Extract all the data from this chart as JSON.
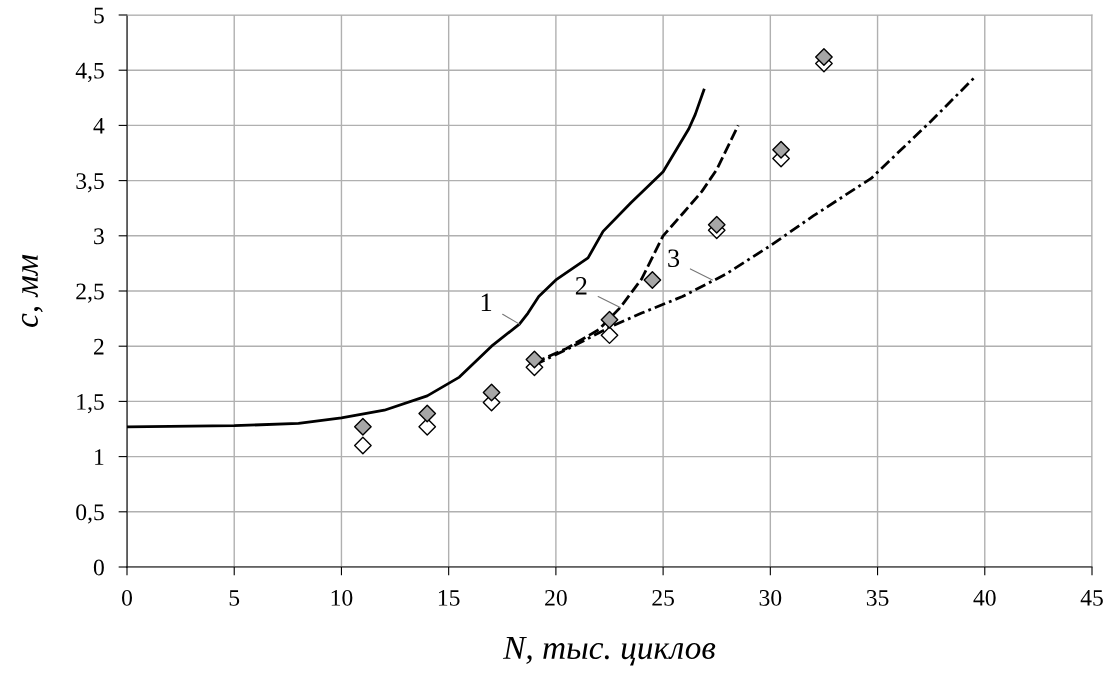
{
  "chart_data": {
    "type": "line",
    "xlabel": "N, тыс. циклов",
    "ylabel": "c, мм",
    "xlim": [
      0,
      45
    ],
    "ylim": [
      0,
      5
    ],
    "xticks": [
      0,
      5,
      10,
      15,
      20,
      25,
      30,
      35,
      40,
      45
    ],
    "yticks": [
      0,
      {
        "value": 0.5,
        "label": "0,5"
      },
      1,
      {
        "value": 1.5,
        "label": "1,5"
      },
      2,
      {
        "value": 2.5,
        "label": "2,5"
      },
      3,
      {
        "value": 3.5,
        "label": "3,5"
      },
      4,
      {
        "value": 4.5,
        "label": "4,5"
      },
      5
    ],
    "grid": true,
    "series": [
      {
        "line_style": "solid",
        "color": "#000000",
        "x": [
          0,
          5,
          8,
          10,
          12,
          14,
          15.5,
          17,
          18.3,
          18.7,
          19.2,
          20,
          21.5,
          22.2,
          23.5,
          25,
          26.2,
          26.5,
          26.9
        ],
        "values": [
          1.27,
          1.28,
          1.3,
          1.35,
          1.42,
          1.55,
          1.72,
          2.0,
          2.2,
          2.3,
          2.45,
          2.6,
          2.8,
          3.04,
          3.3,
          3.58,
          3.97,
          4.1,
          4.32
        ]
      },
      {
        "line_style": "dashed",
        "color": "#000000",
        "x": [
          19,
          20.5,
          22,
          23,
          24,
          25,
          26,
          26.8,
          27.5,
          28.5
        ],
        "values": [
          1.85,
          1.98,
          2.15,
          2.35,
          2.61,
          3.0,
          3.22,
          3.4,
          3.6,
          4.0
        ]
      },
      {
        "line_style": "dashdot",
        "color": "#000000",
        "x": [
          19,
          20.5,
          22.6,
          24,
          25.9,
          27.9,
          30,
          32,
          34.7,
          37.5,
          39.6
        ],
        "values": [
          1.83,
          1.97,
          2.18,
          2.3,
          2.45,
          2.65,
          2.91,
          3.18,
          3.52,
          4.04,
          4.45
        ]
      },
      {
        "type": "scatter",
        "marker": "diamond",
        "color": "#ffffff",
        "x": [
          11,
          14,
          17,
          19,
          22.5,
          27.5,
          30.5,
          32.5
        ],
        "values": [
          1.1,
          1.27,
          1.49,
          1.81,
          2.1,
          3.05,
          3.7,
          4.56
        ]
      },
      {
        "type": "scatter",
        "marker": "diamond",
        "color": "#a6a6a6",
        "x": [
          11,
          14,
          17,
          19,
          22.5,
          24.5,
          27.5,
          30.5,
          32.5
        ],
        "values": [
          1.27,
          1.39,
          1.58,
          1.88,
          2.24,
          2.6,
          3.1,
          3.78,
          4.62
        ]
      }
    ],
    "annotations": [
      {
        "text": "1",
        "x": 18.3,
        "y": 2.2
      },
      {
        "text": "2",
        "x": 23.0,
        "y": 2.35
      },
      {
        "text": "3",
        "x": 27.3,
        "y": 2.6
      }
    ]
  }
}
